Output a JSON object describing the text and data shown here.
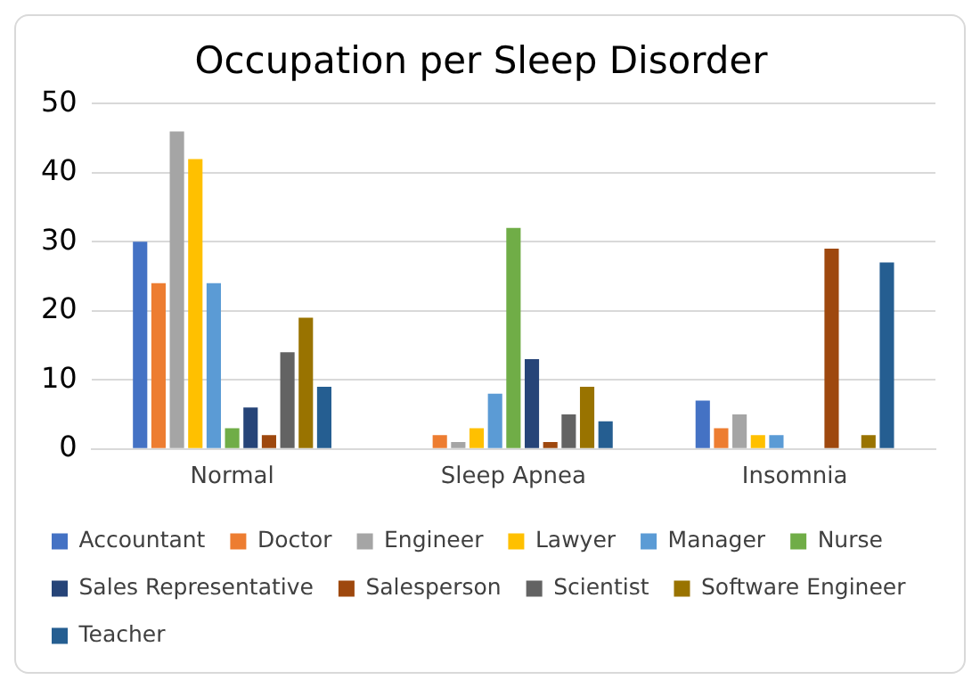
{
  "chart_data": {
    "type": "bar",
    "title": "Occupation per Sleep Disorder",
    "categories": [
      "Normal",
      "Sleep Apnea",
      "Insomnia"
    ],
    "series": [
      {
        "name": "Accountant",
        "color": "#4472c4",
        "values": [
          30,
          0,
          7
        ]
      },
      {
        "name": "Doctor",
        "color": "#ed7d31",
        "values": [
          24,
          2,
          3
        ]
      },
      {
        "name": "Engineer",
        "color": "#a5a5a5",
        "values": [
          46,
          1,
          5
        ]
      },
      {
        "name": "Lawyer",
        "color": "#ffc000",
        "values": [
          42,
          3,
          2
        ]
      },
      {
        "name": "Manager",
        "color": "#5b9bd5",
        "values": [
          24,
          8,
          2
        ]
      },
      {
        "name": "Nurse",
        "color": "#70ad47",
        "values": [
          3,
          32,
          0
        ]
      },
      {
        "name": "Sales Representative",
        "color": "#264478",
        "values": [
          6,
          13,
          0
        ]
      },
      {
        "name": "Salesperson",
        "color": "#9e480e",
        "values": [
          2,
          1,
          29
        ]
      },
      {
        "name": "Scientist",
        "color": "#636363",
        "values": [
          14,
          5,
          0
        ]
      },
      {
        "name": "Software Engineer",
        "color": "#997300",
        "values": [
          19,
          9,
          2
        ]
      },
      {
        "name": "Teacher",
        "color": "#255e91",
        "values": [
          9,
          4,
          27
        ]
      }
    ],
    "ylim": [
      0,
      50
    ],
    "yticks": [
      0,
      10,
      20,
      30,
      40,
      50
    ],
    "grid": "y",
    "legend": "bottom"
  }
}
